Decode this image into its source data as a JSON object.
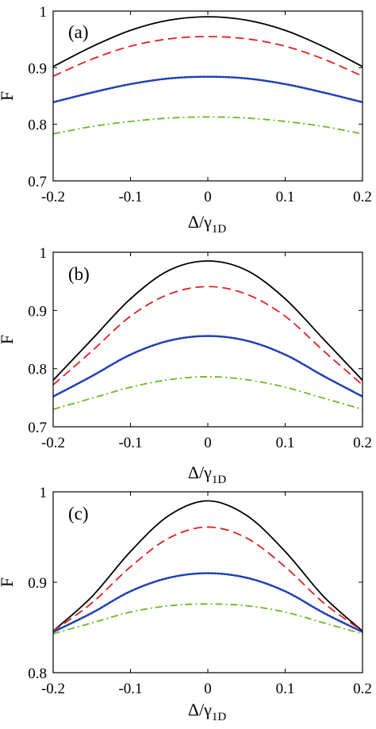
{
  "chart_data": [
    {
      "type": "line",
      "panel_label": "(a)",
      "xlabel": "Δ/γ1D",
      "xlabel_main": "Δ/γ",
      "xlabel_sub": "1D",
      "ylabel": "F",
      "xlim": [
        -0.2,
        0.2
      ],
      "ylim": [
        0.7,
        1.0
      ],
      "xticks": [
        -0.2,
        -0.1,
        0,
        0.1,
        0.2
      ],
      "xtick_labels": [
        "-0.2",
        "-0.1",
        "0",
        "0.1",
        "0.2"
      ],
      "yticks": [
        0.7,
        0.8,
        0.9,
        1.0
      ],
      "ytick_labels": [
        "0.7",
        "0.8",
        "0.9",
        "1"
      ],
      "series": [
        {
          "style": "solid",
          "color": "#000000",
          "x": [
            -0.2,
            -0.15,
            -0.1,
            -0.05,
            0,
            0.05,
            0.1,
            0.15,
            0.2
          ],
          "values": [
            0.902,
            0.937,
            0.966,
            0.984,
            0.99,
            0.984,
            0.966,
            0.937,
            0.902
          ]
        },
        {
          "style": "dashed",
          "color": "#e02020",
          "x": [
            -0.2,
            -0.15,
            -0.1,
            -0.05,
            0,
            0.05,
            0.1,
            0.15,
            0.2
          ],
          "values": [
            0.885,
            0.915,
            0.938,
            0.951,
            0.955,
            0.951,
            0.938,
            0.915,
            0.885
          ]
        },
        {
          "style": "dotted",
          "color": "#1f3fb4",
          "x": [
            -0.2,
            -0.15,
            -0.1,
            -0.05,
            0,
            0.05,
            0.1,
            0.15,
            0.2
          ],
          "values": [
            0.839,
            0.856,
            0.871,
            0.881,
            0.884,
            0.881,
            0.871,
            0.856,
            0.839
          ]
        },
        {
          "style": "dashdot",
          "color": "#66bb22",
          "x": [
            -0.2,
            -0.15,
            -0.1,
            -0.05,
            0,
            0.05,
            0.1,
            0.15,
            0.2
          ],
          "values": [
            0.783,
            0.796,
            0.805,
            0.811,
            0.813,
            0.811,
            0.805,
            0.796,
            0.783
          ]
        }
      ]
    },
    {
      "type": "line",
      "panel_label": "(b)",
      "xlabel": "Δ/γ1D",
      "xlabel_main": "Δ/γ",
      "xlabel_sub": "1D",
      "ylabel": "F",
      "xlim": [
        -0.2,
        0.2
      ],
      "ylim": [
        0.7,
        1.0
      ],
      "xticks": [
        -0.2,
        -0.1,
        0,
        0.1,
        0.2
      ],
      "xtick_labels": [
        "-0.2",
        "-0.1",
        "0",
        "0.1",
        "0.2"
      ],
      "yticks": [
        0.7,
        0.8,
        0.9,
        1.0
      ],
      "ytick_labels": [
        "0.7",
        "0.8",
        "0.9",
        "1"
      ],
      "series": [
        {
          "style": "solid",
          "color": "#000000",
          "x": [
            -0.2,
            -0.15,
            -0.1,
            -0.05,
            0,
            0.05,
            0.1,
            0.15,
            0.2
          ],
          "values": [
            0.78,
            0.85,
            0.92,
            0.969,
            0.985,
            0.969,
            0.92,
            0.85,
            0.78
          ]
        },
        {
          "style": "dashed",
          "color": "#e02020",
          "x": [
            -0.2,
            -0.15,
            -0.1,
            -0.05,
            0,
            0.05,
            0.1,
            0.15,
            0.2
          ],
          "values": [
            0.772,
            0.83,
            0.89,
            0.928,
            0.941,
            0.928,
            0.89,
            0.83,
            0.772
          ]
        },
        {
          "style": "dotted",
          "color": "#1f3fb4",
          "x": [
            -0.2,
            -0.15,
            -0.1,
            -0.05,
            0,
            0.05,
            0.1,
            0.15,
            0.2
          ],
          "values": [
            0.752,
            0.787,
            0.824,
            0.848,
            0.856,
            0.848,
            0.824,
            0.787,
            0.752
          ]
        },
        {
          "style": "dashdot",
          "color": "#66bb22",
          "x": [
            -0.2,
            -0.15,
            -0.1,
            -0.05,
            0,
            0.05,
            0.1,
            0.15,
            0.2
          ],
          "values": [
            0.73,
            0.749,
            0.768,
            0.781,
            0.786,
            0.781,
            0.768,
            0.749,
            0.73
          ]
        }
      ]
    },
    {
      "type": "line",
      "panel_label": "(c)",
      "xlabel": "Δ/γ1D",
      "xlabel_main": "Δ/γ",
      "xlabel_sub": "1D",
      "ylabel": "F",
      "xlim": [
        -0.2,
        0.2
      ],
      "ylim": [
        0.8,
        1.0
      ],
      "xticks": [
        -0.2,
        -0.1,
        0,
        0.1,
        0.2
      ],
      "xtick_labels": [
        "-0.2",
        "-0.1",
        "0",
        "0.1",
        "0.2"
      ],
      "yticks": [
        0.8,
        0.9,
        1.0
      ],
      "ytick_labels": [
        "0.8",
        "0.9",
        "1"
      ],
      "series": [
        {
          "style": "solid",
          "color": "#000000",
          "x": [
            -0.2,
            -0.15,
            -0.1,
            -0.05,
            0,
            0.05,
            0.1,
            0.15,
            0.2
          ],
          "values": [
            0.846,
            0.884,
            0.934,
            0.974,
            0.99,
            0.974,
            0.934,
            0.884,
            0.846
          ]
        },
        {
          "style": "dashed",
          "color": "#e02020",
          "x": [
            -0.2,
            -0.15,
            -0.1,
            -0.05,
            0,
            0.05,
            0.1,
            0.15,
            0.2
          ],
          "values": [
            0.846,
            0.877,
            0.917,
            0.949,
            0.961,
            0.949,
            0.917,
            0.877,
            0.846
          ]
        },
        {
          "style": "dotted",
          "color": "#1f3fb4",
          "x": [
            -0.2,
            -0.15,
            -0.1,
            -0.05,
            0,
            0.05,
            0.1,
            0.15,
            0.2
          ],
          "values": [
            0.845,
            0.866,
            0.89,
            0.905,
            0.91,
            0.905,
            0.89,
            0.866,
            0.845
          ]
        },
        {
          "style": "dashdot",
          "color": "#66bb22",
          "x": [
            -0.2,
            -0.15,
            -0.1,
            -0.05,
            0,
            0.05,
            0.1,
            0.15,
            0.2
          ],
          "values": [
            0.843,
            0.855,
            0.867,
            0.874,
            0.876,
            0.874,
            0.867,
            0.855,
            0.843
          ]
        }
      ]
    }
  ]
}
